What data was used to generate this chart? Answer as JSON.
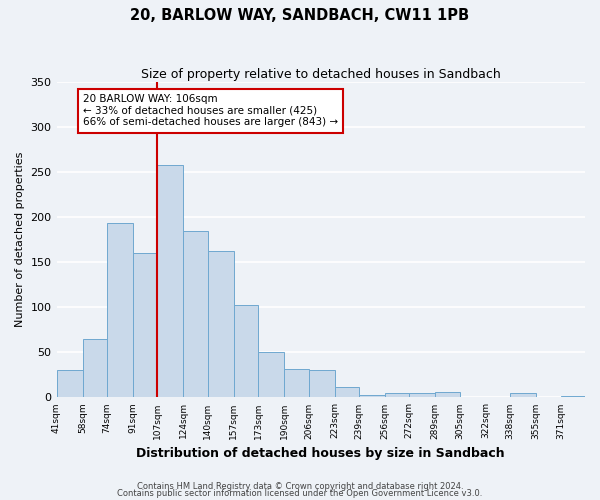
{
  "title1": "20, BARLOW WAY, SANDBACH, CW11 1PB",
  "title2": "Size of property relative to detached houses in Sandbach",
  "xlabel": "Distribution of detached houses by size in Sandbach",
  "ylabel": "Number of detached properties",
  "bin_labels": [
    "41sqm",
    "58sqm",
    "74sqm",
    "91sqm",
    "107sqm",
    "124sqm",
    "140sqm",
    "157sqm",
    "173sqm",
    "190sqm",
    "206sqm",
    "223sqm",
    "239sqm",
    "256sqm",
    "272sqm",
    "289sqm",
    "305sqm",
    "322sqm",
    "338sqm",
    "355sqm",
    "371sqm"
  ],
  "bar_heights": [
    30,
    65,
    193,
    160,
    258,
    184,
    162,
    103,
    50,
    32,
    30,
    12,
    3,
    5,
    5,
    6,
    0,
    0,
    5,
    0,
    2
  ],
  "bar_color": "#c9d9ea",
  "bar_edge_color": "#6fa8d0",
  "vline_x": 107,
  "vline_color": "#cc0000",
  "annotation_title": "20 BARLOW WAY: 106sqm",
  "annotation_line1": "← 33% of detached houses are smaller (425)",
  "annotation_line2": "66% of semi-detached houses are larger (843) →",
  "annotation_box_color": "#cc0000",
  "ylim": [
    0,
    350
  ],
  "yticks": [
    0,
    50,
    100,
    150,
    200,
    250,
    300,
    350
  ],
  "footer1": "Contains HM Land Registry data © Crown copyright and database right 2024.",
  "footer2": "Contains public sector information licensed under the Open Government Licence v3.0.",
  "bg_color": "#eef2f7",
  "grid_color": "#ffffff"
}
